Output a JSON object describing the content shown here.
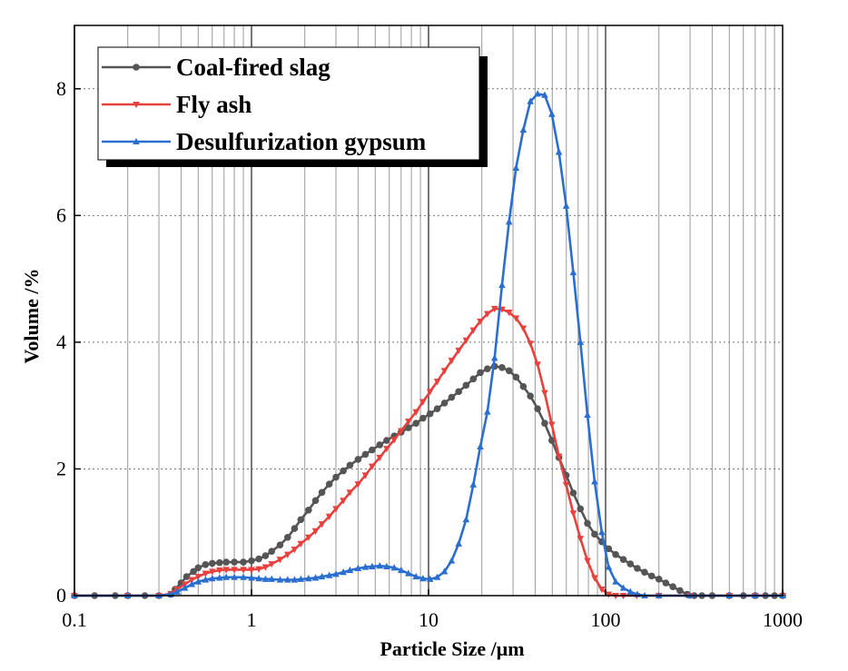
{
  "chart_data": {
    "type": "line",
    "xscale": "log",
    "xlim": [
      0.1,
      1000
    ],
    "ylim": [
      0,
      9
    ],
    "xlabel": "Particle Size /μm",
    "ylabel": "Volume /%",
    "x_ticks": [
      {
        "value": 0.1,
        "label": "0.1"
      },
      {
        "value": 1,
        "label": "1"
      },
      {
        "value": 10,
        "label": "10"
      },
      {
        "value": 100,
        "label": "100"
      },
      {
        "value": 1000,
        "label": "1000"
      }
    ],
    "y_ticks": [
      {
        "value": 0,
        "label": "0"
      },
      {
        "value": 2,
        "label": "2"
      },
      {
        "value": 4,
        "label": "4"
      },
      {
        "value": 6,
        "label": "6"
      },
      {
        "value": 8,
        "label": "8"
      }
    ],
    "legend_position": "top-left",
    "series": [
      {
        "name": "Coal-fired slag",
        "color": "#555555",
        "marker": "circle",
        "points": [
          [
            0.1,
            0
          ],
          [
            0.13,
            0
          ],
          [
            0.17,
            0
          ],
          [
            0.2,
            0
          ],
          [
            0.25,
            0
          ],
          [
            0.3,
            0
          ],
          [
            0.35,
            0.02
          ],
          [
            0.37,
            0.1
          ],
          [
            0.4,
            0.2
          ],
          [
            0.43,
            0.3
          ],
          [
            0.47,
            0.38
          ],
          [
            0.5,
            0.44
          ],
          [
            0.55,
            0.49
          ],
          [
            0.6,
            0.51
          ],
          [
            0.66,
            0.52
          ],
          [
            0.72,
            0.53
          ],
          [
            0.8,
            0.53
          ],
          [
            0.9,
            0.53
          ],
          [
            1.0,
            0.55
          ],
          [
            1.1,
            0.58
          ],
          [
            1.2,
            0.63
          ],
          [
            1.3,
            0.7
          ],
          [
            1.45,
            0.8
          ],
          [
            1.6,
            0.92
          ],
          [
            1.75,
            1.06
          ],
          [
            1.9,
            1.2
          ],
          [
            2.1,
            1.35
          ],
          [
            2.3,
            1.5
          ],
          [
            2.5,
            1.63
          ],
          [
            2.75,
            1.76
          ],
          [
            3.0,
            1.87
          ],
          [
            3.3,
            1.97
          ],
          [
            3.6,
            2.06
          ],
          [
            4.0,
            2.15
          ],
          [
            4.4,
            2.23
          ],
          [
            4.8,
            2.3
          ],
          [
            5.3,
            2.38
          ],
          [
            5.8,
            2.45
          ],
          [
            6.4,
            2.52
          ],
          [
            7.0,
            2.58
          ],
          [
            7.7,
            2.65
          ],
          [
            8.5,
            2.72
          ],
          [
            9.3,
            2.8
          ],
          [
            10.2,
            2.87
          ],
          [
            11.2,
            2.95
          ],
          [
            12.3,
            3.04
          ],
          [
            13.5,
            3.13
          ],
          [
            14.8,
            3.22
          ],
          [
            16.3,
            3.32
          ],
          [
            17.9,
            3.42
          ],
          [
            19.6,
            3.52
          ],
          [
            21.5,
            3.58
          ],
          [
            23.6,
            3.62
          ],
          [
            26,
            3.6
          ],
          [
            28.5,
            3.55
          ],
          [
            31.2,
            3.45
          ],
          [
            34.3,
            3.3
          ],
          [
            37.6,
            3.15
          ],
          [
            41.3,
            2.95
          ],
          [
            45.3,
            2.72
          ],
          [
            49.7,
            2.45
          ],
          [
            54.5,
            2.18
          ],
          [
            59.9,
            1.9
          ],
          [
            65.7,
            1.62
          ],
          [
            72.1,
            1.37
          ],
          [
            79,
            1.14
          ],
          [
            86.7,
            0.97
          ],
          [
            95.2,
            0.85
          ],
          [
            104,
            0.74
          ],
          [
            114,
            0.65
          ],
          [
            126,
            0.57
          ],
          [
            138,
            0.5
          ],
          [
            151,
            0.43
          ],
          [
            166,
            0.37
          ],
          [
            182,
            0.31
          ],
          [
            200,
            0.26
          ],
          [
            219,
            0.2
          ],
          [
            240,
            0.14
          ],
          [
            263,
            0.08
          ],
          [
            289,
            0.02
          ],
          [
            317,
            0
          ],
          [
            350,
            0
          ],
          [
            400,
            0
          ],
          [
            500,
            0
          ],
          [
            600,
            0
          ],
          [
            700,
            0
          ],
          [
            800,
            0
          ],
          [
            900,
            0
          ],
          [
            1000,
            0
          ]
        ]
      },
      {
        "name": "Fly ash",
        "color": "#e8403c",
        "marker": "triangle-down",
        "points": [
          [
            0.1,
            0
          ],
          [
            0.2,
            0
          ],
          [
            0.3,
            0
          ],
          [
            0.35,
            0.03
          ],
          [
            0.38,
            0.1
          ],
          [
            0.42,
            0.18
          ],
          [
            0.46,
            0.25
          ],
          [
            0.5,
            0.3
          ],
          [
            0.55,
            0.35
          ],
          [
            0.6,
            0.38
          ],
          [
            0.66,
            0.4
          ],
          [
            0.72,
            0.41
          ],
          [
            0.8,
            0.41
          ],
          [
            0.9,
            0.41
          ],
          [
            1.0,
            0.41
          ],
          [
            1.1,
            0.42
          ],
          [
            1.2,
            0.45
          ],
          [
            1.3,
            0.5
          ],
          [
            1.45,
            0.57
          ],
          [
            1.6,
            0.65
          ],
          [
            1.75,
            0.73
          ],
          [
            1.9,
            0.82
          ],
          [
            2.1,
            0.92
          ],
          [
            2.3,
            1.02
          ],
          [
            2.5,
            1.13
          ],
          [
            2.75,
            1.25
          ],
          [
            3.0,
            1.37
          ],
          [
            3.3,
            1.5
          ],
          [
            3.6,
            1.63
          ],
          [
            4.0,
            1.76
          ],
          [
            4.4,
            1.9
          ],
          [
            4.8,
            2.04
          ],
          [
            5.3,
            2.18
          ],
          [
            5.8,
            2.32
          ],
          [
            6.4,
            2.46
          ],
          [
            7.0,
            2.6
          ],
          [
            7.7,
            2.75
          ],
          [
            8.5,
            2.9
          ],
          [
            9.3,
            3.06
          ],
          [
            10.2,
            3.22
          ],
          [
            11.2,
            3.38
          ],
          [
            12.3,
            3.55
          ],
          [
            13.5,
            3.71
          ],
          [
            14.8,
            3.87
          ],
          [
            16.3,
            4.03
          ],
          [
            17.9,
            4.19
          ],
          [
            19.6,
            4.33
          ],
          [
            21.5,
            4.45
          ],
          [
            23.6,
            4.53
          ],
          [
            26,
            4.52
          ],
          [
            28.5,
            4.47
          ],
          [
            31.2,
            4.38
          ],
          [
            34.3,
            4.22
          ],
          [
            37.6,
            3.98
          ],
          [
            41.3,
            3.65
          ],
          [
            45.3,
            3.2
          ],
          [
            49.7,
            2.7
          ],
          [
            54.5,
            2.2
          ],
          [
            59.9,
            1.75
          ],
          [
            65.7,
            1.3
          ],
          [
            72.1,
            0.9
          ],
          [
            79,
            0.55
          ],
          [
            86.7,
            0.28
          ],
          [
            95.2,
            0.1
          ],
          [
            104,
            0.02
          ],
          [
            114,
            0
          ],
          [
            126,
            0
          ],
          [
            150,
            0
          ],
          [
            200,
            0
          ],
          [
            300,
            0
          ],
          [
            500,
            0
          ],
          [
            700,
            0
          ],
          [
            1000,
            0
          ]
        ]
      },
      {
        "name": "Desulfurization gypsum",
        "color": "#2a6ed0",
        "marker": "triangle-up",
        "points": [
          [
            0.1,
            0
          ],
          [
            0.2,
            0
          ],
          [
            0.3,
            0
          ],
          [
            0.35,
            0.02
          ],
          [
            0.38,
            0.06
          ],
          [
            0.42,
            0.12
          ],
          [
            0.46,
            0.18
          ],
          [
            0.5,
            0.22
          ],
          [
            0.55,
            0.25
          ],
          [
            0.6,
            0.27
          ],
          [
            0.66,
            0.28
          ],
          [
            0.72,
            0.29
          ],
          [
            0.8,
            0.29
          ],
          [
            0.9,
            0.29
          ],
          [
            1.0,
            0.28
          ],
          [
            1.1,
            0.27
          ],
          [
            1.2,
            0.26
          ],
          [
            1.3,
            0.26
          ],
          [
            1.45,
            0.25
          ],
          [
            1.6,
            0.25
          ],
          [
            1.75,
            0.25
          ],
          [
            1.9,
            0.26
          ],
          [
            2.1,
            0.27
          ],
          [
            2.3,
            0.28
          ],
          [
            2.5,
            0.3
          ],
          [
            2.75,
            0.32
          ],
          [
            3.0,
            0.34
          ],
          [
            3.3,
            0.37
          ],
          [
            3.6,
            0.4
          ],
          [
            4.0,
            0.43
          ],
          [
            4.4,
            0.45
          ],
          [
            4.8,
            0.46
          ],
          [
            5.3,
            0.47
          ],
          [
            5.8,
            0.46
          ],
          [
            6.4,
            0.44
          ],
          [
            7.0,
            0.4
          ],
          [
            7.7,
            0.35
          ],
          [
            8.5,
            0.3
          ],
          [
            9.3,
            0.27
          ],
          [
            10.2,
            0.26
          ],
          [
            11.2,
            0.29
          ],
          [
            12.3,
            0.38
          ],
          [
            13.5,
            0.55
          ],
          [
            14.8,
            0.82
          ],
          [
            16.3,
            1.2
          ],
          [
            17.9,
            1.75
          ],
          [
            19.6,
            2.35
          ],
          [
            21.5,
            2.9
          ],
          [
            23.6,
            3.75
          ],
          [
            26,
            4.9
          ],
          [
            28.5,
            5.9
          ],
          [
            31.2,
            6.75
          ],
          [
            34.3,
            7.35
          ],
          [
            37.6,
            7.8
          ],
          [
            41.3,
            7.92
          ],
          [
            45.3,
            7.9
          ],
          [
            49.7,
            7.6
          ],
          [
            54.5,
            7.0
          ],
          [
            59.9,
            6.15
          ],
          [
            65.7,
            5.1
          ],
          [
            72.1,
            4.0
          ],
          [
            79,
            2.85
          ],
          [
            86.7,
            1.8
          ],
          [
            95.2,
            1.0
          ],
          [
            104,
            0.45
          ],
          [
            114,
            0.22
          ],
          [
            126,
            0.12
          ],
          [
            138,
            0.06
          ],
          [
            151,
            0.02
          ],
          [
            166,
            0
          ],
          [
            200,
            0
          ],
          [
            300,
            0
          ],
          [
            500,
            0
          ],
          [
            700,
            0
          ],
          [
            1000,
            0
          ]
        ]
      }
    ]
  }
}
